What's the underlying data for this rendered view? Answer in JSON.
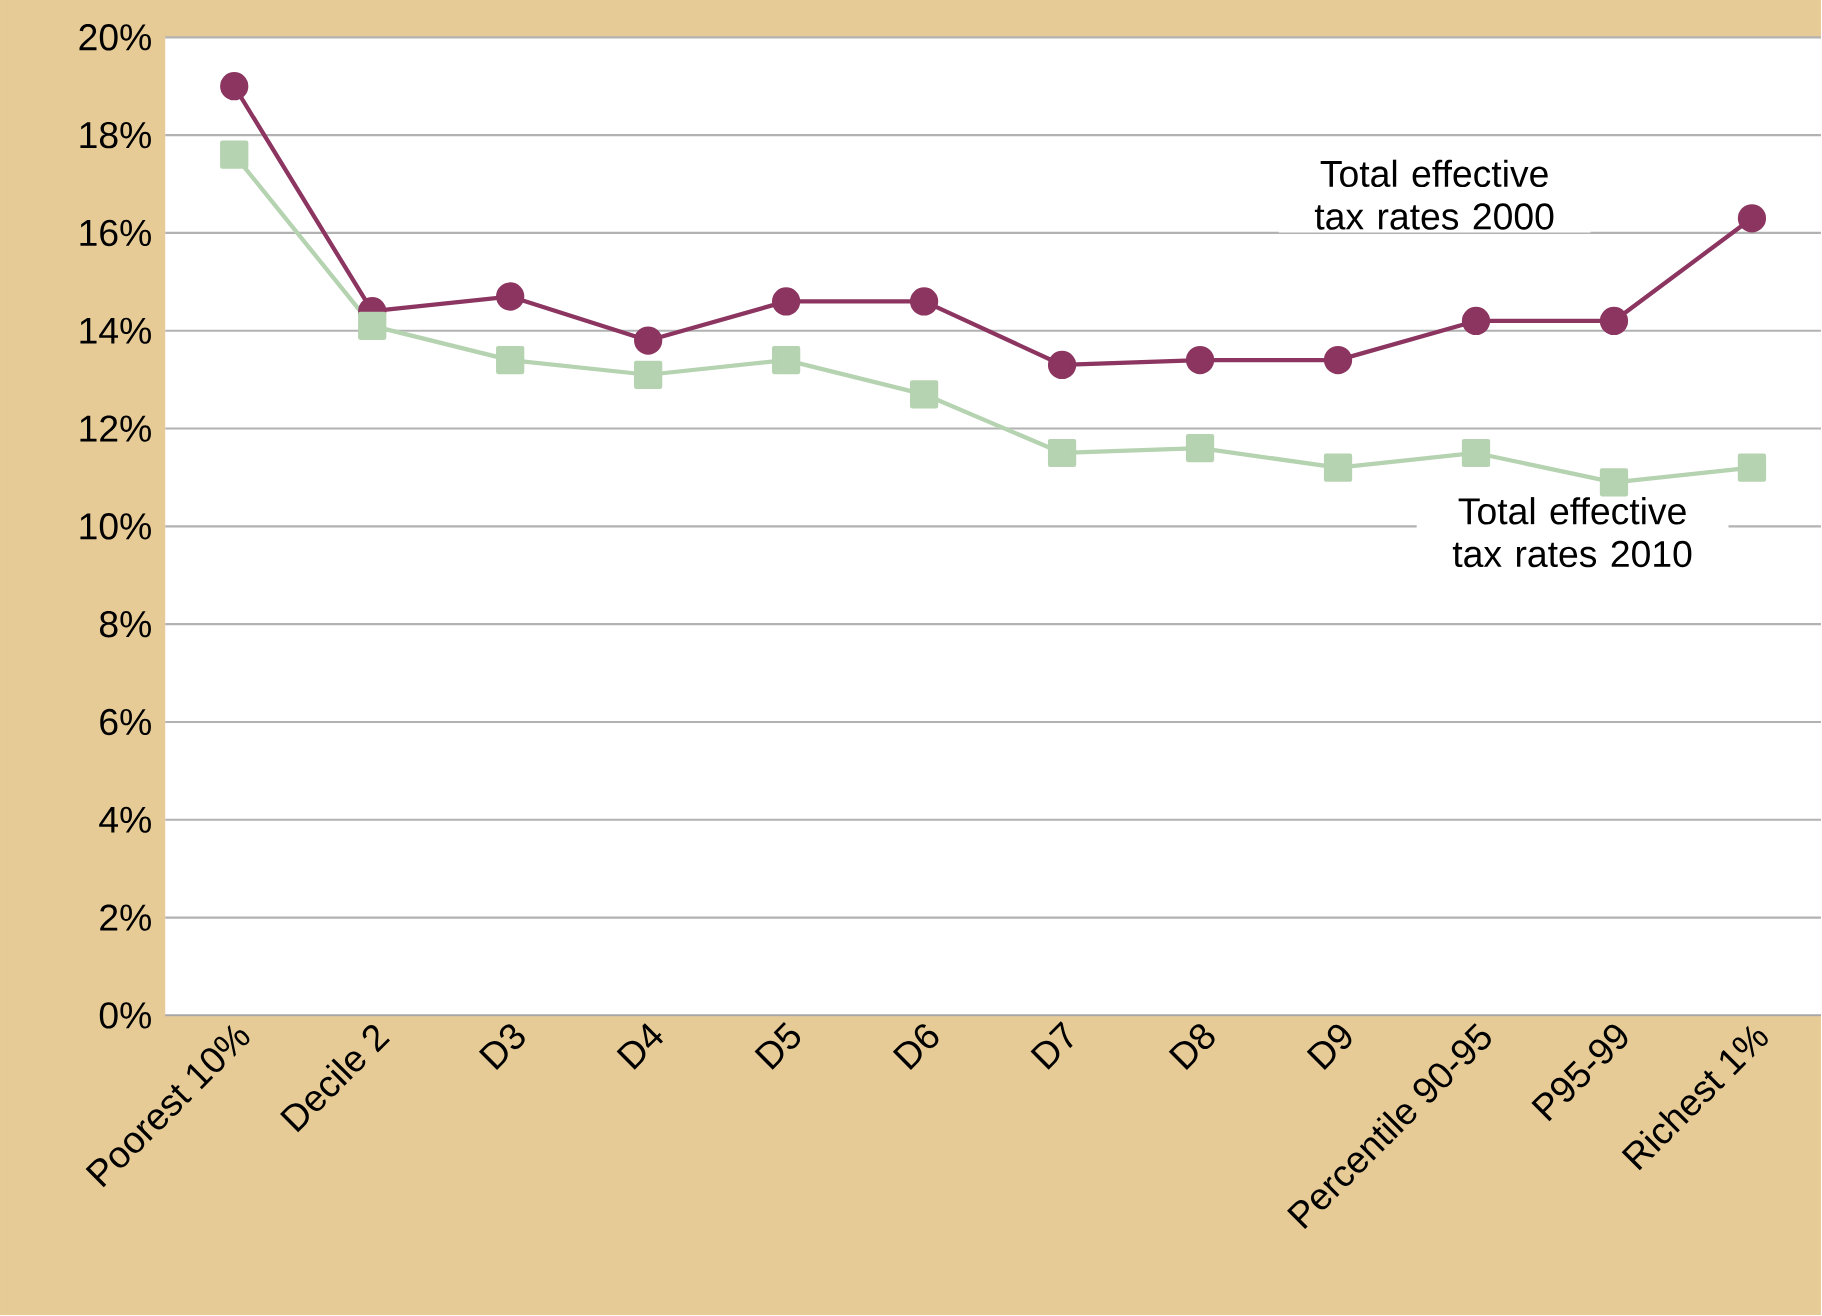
{
  "chart_data": {
    "type": "line",
    "categories": [
      "Poorest 10%",
      "Decile 2",
      "D3",
      "D4",
      "D5",
      "D6",
      "D7",
      "D8",
      "D9",
      "Percentile 90-95",
      "P95-99",
      "Richest 1%"
    ],
    "series": [
      {
        "name": "Total effective tax rates 2000",
        "color": "#8b3560",
        "marker": "circle",
        "values": [
          19.0,
          14.4,
          14.7,
          13.8,
          14.6,
          14.6,
          13.3,
          13.4,
          13.4,
          14.2,
          14.2,
          16.3
        ]
      },
      {
        "name": "Total effective tax rates 2010",
        "color": "#b5d3b0",
        "marker": "square",
        "values": [
          17.6,
          14.1,
          13.4,
          13.1,
          13.4,
          12.7,
          11.5,
          11.6,
          11.2,
          11.5,
          10.9,
          11.2
        ]
      }
    ],
    "ylim": [
      0,
      20
    ],
    "yticks": [
      {
        "value": 0,
        "label": "0%"
      },
      {
        "value": 2,
        "label": "2%"
      },
      {
        "value": 4,
        "label": "4%"
      },
      {
        "value": 6,
        "label": "6%"
      },
      {
        "value": 8,
        "label": "8%"
      },
      {
        "value": 10,
        "label": "10%"
      },
      {
        "value": 12,
        "label": "12%"
      },
      {
        "value": 14,
        "label": "14%"
      },
      {
        "value": 16,
        "label": "16%"
      },
      {
        "value": 18,
        "label": "18%"
      },
      {
        "value": 20,
        "label": "20%"
      }
    ],
    "grid": "y",
    "legend": false,
    "line_style": "solid"
  }
}
